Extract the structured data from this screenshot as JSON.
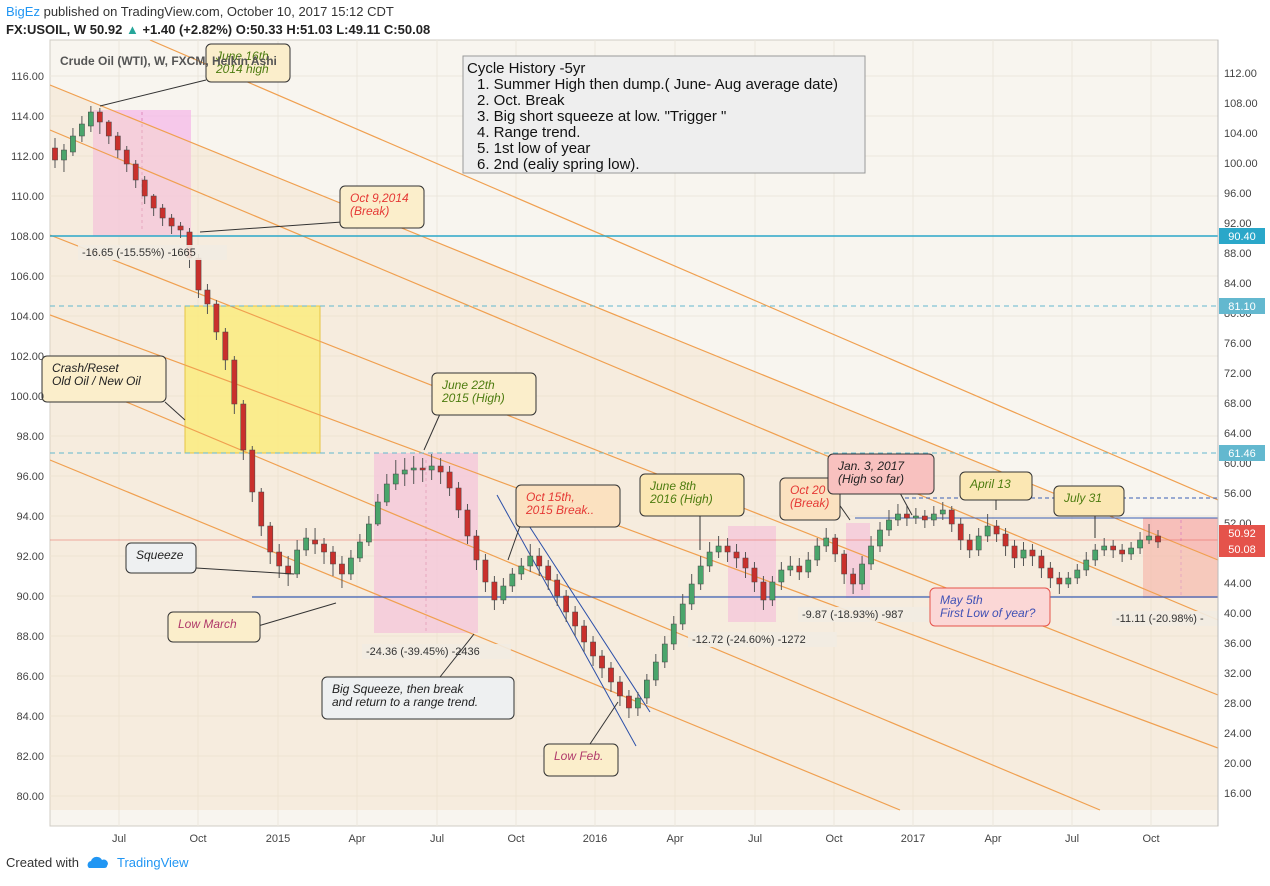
{
  "header": {
    "author": "BigEz",
    "published_text": "published on TradingView.com, October 10, 2017 15:12 CDT",
    "symbol_line": "FX:USOIL, W",
    "last": "50.92",
    "change": "+1.40 (+2.82%)",
    "o": "O:50.33",
    "h": "H:51.03",
    "l": "L:49.11",
    "c": "C:50.08"
  },
  "footer": {
    "created_with": "Created with",
    "brand": "TradingView"
  },
  "chart_data": {
    "type": "candlestick",
    "title": "Crude Oil (WTI), W, FXCM, Heikin Ashi",
    "x_ticks": [
      "Jul",
      "Oct",
      "2015",
      "Apr",
      "Jul",
      "Oct",
      "2016",
      "Apr",
      "Jul",
      "Oct",
      "2017",
      "Apr",
      "Jul",
      "Oct"
    ],
    "left_axis": {
      "ticks": [
        "116.00",
        "114.00",
        "112.00",
        "110.00",
        "108.00",
        "106.00",
        "104.00",
        "102.00",
        "100.00",
        "98.00",
        "96.00",
        "94.00",
        "92.00",
        "90.00",
        "88.00",
        "86.00",
        "84.00",
        "82.00",
        "80.00"
      ],
      "range": [
        79,
        117
      ]
    },
    "right_axis": {
      "ticks": [
        "112.00",
        "108.00",
        "104.00",
        "100.00",
        "96.00",
        "92.00",
        "88.00",
        "84.00",
        "80.00",
        "76.00",
        "72.00",
        "68.00",
        "64.00",
        "60.00",
        "56.00",
        "52.00",
        "48.00",
        "44.00",
        "40.00",
        "36.00",
        "32.00",
        "28.00",
        "24.00",
        "20.00",
        "16.00"
      ]
    },
    "price_badges": [
      {
        "label": "90.40",
        "color": "#2aa7c9"
      },
      {
        "label": "81.10",
        "color": "#63b8cf"
      },
      {
        "label": "61.46",
        "color": "#63b8cf"
      },
      {
        "label": "50.92",
        "color": "#e5534b"
      },
      {
        "label": "50.08",
        "color": "#e5534b"
      }
    ],
    "candles_approx_left_scale": [
      [
        112.4,
        111.8,
        112.9,
        111.4
      ],
      [
        111.8,
        112.3,
        112.6,
        111.2
      ],
      [
        112.2,
        113.0,
        113.4,
        112.0
      ],
      [
        113.0,
        113.6,
        114.0,
        112.7
      ],
      [
        113.5,
        114.2,
        114.5,
        113.2
      ],
      [
        114.2,
        113.7,
        114.4,
        113.1
      ],
      [
        113.7,
        113.0,
        113.8,
        112.6
      ],
      [
        113.0,
        112.3,
        113.2,
        111.9
      ],
      [
        112.3,
        111.6,
        112.5,
        111.2
      ],
      [
        111.6,
        110.8,
        111.8,
        110.4
      ],
      [
        110.8,
        110.0,
        111.0,
        109.6
      ],
      [
        110.0,
        109.4,
        110.1,
        109.0
      ],
      [
        109.4,
        108.9,
        109.6,
        108.5
      ],
      [
        108.9,
        108.5,
        109.1,
        108.1
      ],
      [
        108.5,
        108.3,
        108.7,
        107.9
      ],
      [
        108.2,
        106.9,
        108.4,
        106.4
      ],
      [
        106.9,
        105.3,
        107.1,
        104.9
      ],
      [
        105.3,
        104.6,
        105.6,
        104.1
      ],
      [
        104.6,
        103.2,
        104.8,
        102.8
      ],
      [
        103.2,
        101.8,
        103.4,
        101.3
      ],
      [
        101.8,
        99.6,
        102.0,
        99.1
      ],
      [
        99.6,
        97.3,
        99.8,
        96.8
      ],
      [
        97.3,
        95.2,
        97.5,
        94.7
      ],
      [
        95.2,
        93.5,
        95.4,
        93.0
      ],
      [
        93.5,
        92.2,
        93.7,
        91.6
      ],
      [
        92.2,
        91.5,
        92.6,
        90.9
      ],
      [
        91.5,
        91.1,
        92.0,
        90.5
      ],
      [
        91.1,
        92.3,
        92.8,
        90.9
      ],
      [
        92.3,
        92.9,
        93.4,
        92.0
      ],
      [
        92.8,
        92.6,
        93.4,
        92.1
      ],
      [
        92.6,
        92.2,
        92.9,
        91.6
      ],
      [
        92.2,
        91.6,
        92.5,
        91.0
      ],
      [
        91.6,
        91.1,
        92.0,
        90.4
      ],
      [
        91.1,
        91.9,
        92.3,
        90.8
      ],
      [
        91.9,
        92.7,
        93.1,
        91.7
      ],
      [
        92.7,
        93.6,
        94.0,
        92.5
      ],
      [
        93.6,
        94.7,
        95.1,
        93.5
      ],
      [
        94.7,
        95.6,
        96.1,
        94.5
      ],
      [
        95.6,
        96.1,
        96.8,
        95.3
      ],
      [
        96.1,
        96.3,
        96.9,
        95.5
      ],
      [
        96.3,
        96.4,
        97.0,
        95.6
      ],
      [
        96.4,
        96.3,
        96.9,
        95.7
      ],
      [
        96.3,
        96.5,
        97.1,
        95.8
      ],
      [
        96.5,
        96.2,
        96.9,
        95.6
      ],
      [
        96.2,
        95.4,
        96.5,
        95.0
      ],
      [
        95.4,
        94.3,
        95.7,
        93.9
      ],
      [
        94.3,
        93.0,
        94.6,
        92.6
      ],
      [
        93.0,
        91.8,
        93.3,
        91.3
      ],
      [
        91.8,
        90.7,
        92.1,
        90.2
      ],
      [
        90.7,
        89.8,
        91.0,
        89.3
      ],
      [
        89.8,
        90.5,
        90.9,
        89.6
      ],
      [
        90.5,
        91.1,
        91.4,
        90.2
      ],
      [
        91.1,
        91.5,
        91.9,
        90.8
      ],
      [
        91.5,
        92.0,
        92.6,
        91.2
      ],
      [
        92.0,
        91.5,
        92.4,
        91.0
      ],
      [
        91.5,
        90.8,
        91.8,
        90.3
      ],
      [
        90.8,
        90.0,
        91.1,
        89.5
      ],
      [
        90.0,
        89.2,
        90.3,
        88.7
      ],
      [
        89.2,
        88.5,
        89.5,
        88.0
      ],
      [
        88.5,
        87.7,
        88.8,
        87.2
      ],
      [
        87.7,
        87.0,
        88.0,
        86.5
      ],
      [
        87.0,
        86.4,
        87.3,
        85.9
      ],
      [
        86.4,
        85.7,
        86.7,
        85.2
      ],
      [
        85.7,
        85.0,
        86.0,
        84.5
      ],
      [
        85.0,
        84.4,
        85.3,
        83.9
      ],
      [
        84.4,
        84.9,
        85.2,
        84.0
      ],
      [
        84.9,
        85.8,
        86.1,
        84.6
      ],
      [
        85.8,
        86.7,
        87.1,
        85.5
      ],
      [
        86.7,
        87.6,
        88.0,
        86.4
      ],
      [
        87.6,
        88.6,
        89.0,
        87.3
      ],
      [
        88.6,
        89.6,
        90.1,
        88.3
      ],
      [
        89.6,
        90.6,
        91.1,
        89.3
      ],
      [
        90.6,
        91.5,
        92.0,
        90.3
      ],
      [
        91.5,
        92.2,
        92.7,
        91.2
      ],
      [
        92.2,
        92.5,
        93.0,
        91.9
      ],
      [
        92.5,
        92.2,
        92.9,
        91.7
      ],
      [
        92.2,
        91.9,
        92.6,
        91.4
      ],
      [
        91.9,
        91.4,
        92.2,
        90.9
      ],
      [
        91.4,
        90.7,
        91.7,
        90.2
      ],
      [
        90.7,
        89.8,
        91.0,
        89.3
      ],
      [
        89.8,
        90.7,
        91.0,
        89.5
      ],
      [
        90.7,
        91.3,
        91.7,
        90.3
      ],
      [
        91.3,
        91.5,
        92.0,
        91.0
      ],
      [
        91.5,
        91.2,
        91.9,
        90.8
      ],
      [
        91.2,
        91.8,
        92.2,
        90.9
      ],
      [
        91.8,
        92.5,
        92.9,
        91.5
      ],
      [
        92.5,
        92.9,
        93.4,
        92.2
      ],
      [
        92.9,
        92.1,
        93.1,
        91.7
      ],
      [
        92.1,
        91.1,
        92.3,
        90.6
      ],
      [
        91.1,
        90.6,
        91.4,
        90.1
      ],
      [
        90.6,
        91.6,
        92.0,
        90.3
      ],
      [
        91.6,
        92.5,
        93.0,
        91.3
      ],
      [
        92.5,
        93.3,
        93.7,
        92.2
      ],
      [
        93.3,
        93.8,
        94.3,
        93.0
      ],
      [
        93.8,
        94.1,
        94.6,
        93.5
      ],
      [
        94.1,
        93.9,
        94.5,
        93.5
      ],
      [
        93.9,
        94.0,
        94.4,
        93.6
      ],
      [
        94.0,
        93.8,
        94.3,
        93.4
      ],
      [
        93.8,
        94.1,
        94.5,
        93.5
      ],
      [
        94.1,
        94.3,
        94.7,
        93.8
      ],
      [
        94.3,
        93.6,
        94.5,
        93.2
      ],
      [
        93.6,
        92.8,
        93.9,
        92.3
      ],
      [
        92.8,
        92.3,
        93.1,
        91.9
      ],
      [
        92.3,
        93.0,
        93.4,
        92.0
      ],
      [
        93.0,
        93.5,
        94.1,
        92.7
      ],
      [
        93.5,
        93.1,
        93.8,
        92.7
      ],
      [
        93.1,
        92.5,
        93.4,
        92.0
      ],
      [
        92.5,
        91.9,
        92.8,
        91.4
      ],
      [
        91.9,
        92.3,
        92.7,
        91.5
      ],
      [
        92.3,
        92.0,
        92.6,
        91.5
      ],
      [
        92.0,
        91.4,
        92.3,
        90.9
      ],
      [
        91.4,
        90.9,
        91.7,
        90.4
      ],
      [
        90.9,
        90.6,
        91.2,
        90.1
      ],
      [
        90.6,
        90.9,
        91.2,
        90.4
      ],
      [
        90.9,
        91.3,
        91.6,
        90.6
      ],
      [
        91.3,
        91.8,
        92.2,
        91.0
      ],
      [
        91.8,
        92.3,
        92.6,
        91.5
      ],
      [
        92.3,
        92.5,
        92.9,
        92.0
      ],
      [
        92.5,
        92.3,
        92.8,
        91.9
      ],
      [
        92.3,
        92.1,
        92.6,
        91.7
      ],
      [
        92.1,
        92.4,
        92.7,
        91.8
      ],
      [
        92.4,
        92.8,
        93.2,
        92.1
      ],
      [
        92.8,
        93.0,
        93.6,
        92.6
      ],
      [
        93.0,
        92.7,
        93.3,
        92.4
      ]
    ],
    "annotations": [
      {
        "id": "june16",
        "lines": [
          "June 16th",
          "2014 high"
        ],
        "color": "#4d7c0f"
      },
      {
        "id": "oct9",
        "lines": [
          "Oct 9,2014",
          "(Break)"
        ],
        "color": "#e53935"
      },
      {
        "id": "crash",
        "lines": [
          "Crash/Reset",
          "Old Oil / New Oil"
        ],
        "color": "#222"
      },
      {
        "id": "june22",
        "lines": [
          "June 22th",
          "2015 (High)"
        ],
        "color": "#4d7c0f"
      },
      {
        "id": "oct15",
        "lines": [
          "Oct 15th,",
          "2015 Break.."
        ],
        "color": "#e53935"
      },
      {
        "id": "june8",
        "lines": [
          "June 8th",
          "2016 (High)"
        ],
        "color": "#4d7c0f"
      },
      {
        "id": "oct2016",
        "lines": [
          "Oct 20",
          "(Break)"
        ],
        "color": "#e53935"
      },
      {
        "id": "jan3",
        "lines": [
          "Jan. 3, 2017",
          "(High so far)"
        ],
        "color": "#222"
      },
      {
        "id": "april13",
        "lines": [
          "April 13"
        ],
        "color": "#4d7c0f"
      },
      {
        "id": "july31",
        "lines": [
          "July 31"
        ],
        "color": "#4d7c0f"
      },
      {
        "id": "squeeze",
        "lines": [
          "Squeeze"
        ],
        "color": "#222"
      },
      {
        "id": "lowmarch",
        "lines": [
          "Low March"
        ],
        "color": "#b03a6a"
      },
      {
        "id": "bigsqueeze",
        "lines": [
          "Big Squeeze, then break",
          "and return to a range trend."
        ],
        "color": "#222"
      },
      {
        "id": "lowfeb",
        "lines": [
          "Low Feb."
        ],
        "color": "#b03a6a"
      },
      {
        "id": "may5",
        "lines": [
          "May 5th",
          "First Low of year?"
        ],
        "color": "#3f51b5"
      }
    ],
    "measure_labels": [
      "-16.65 (-15.55%) -1665",
      "-24.36 (-39.45%) -2436",
      "-12.72 (-24.60%) -1272",
      "-9.87 (-18.93%) -987",
      "-11.11 (-20.98%) -"
    ],
    "notes_box": {
      "title": "Cycle History  -5yr",
      "items": [
        "1. Summer High then dump.( June- Aug average date)",
        "2. Oct. Break",
        "3. Big short squeeze at low. \"Trigger \"",
        "4. Range trend.",
        "5. 1st low of year",
        "6. 2nd (ealiy spring low)."
      ]
    }
  }
}
